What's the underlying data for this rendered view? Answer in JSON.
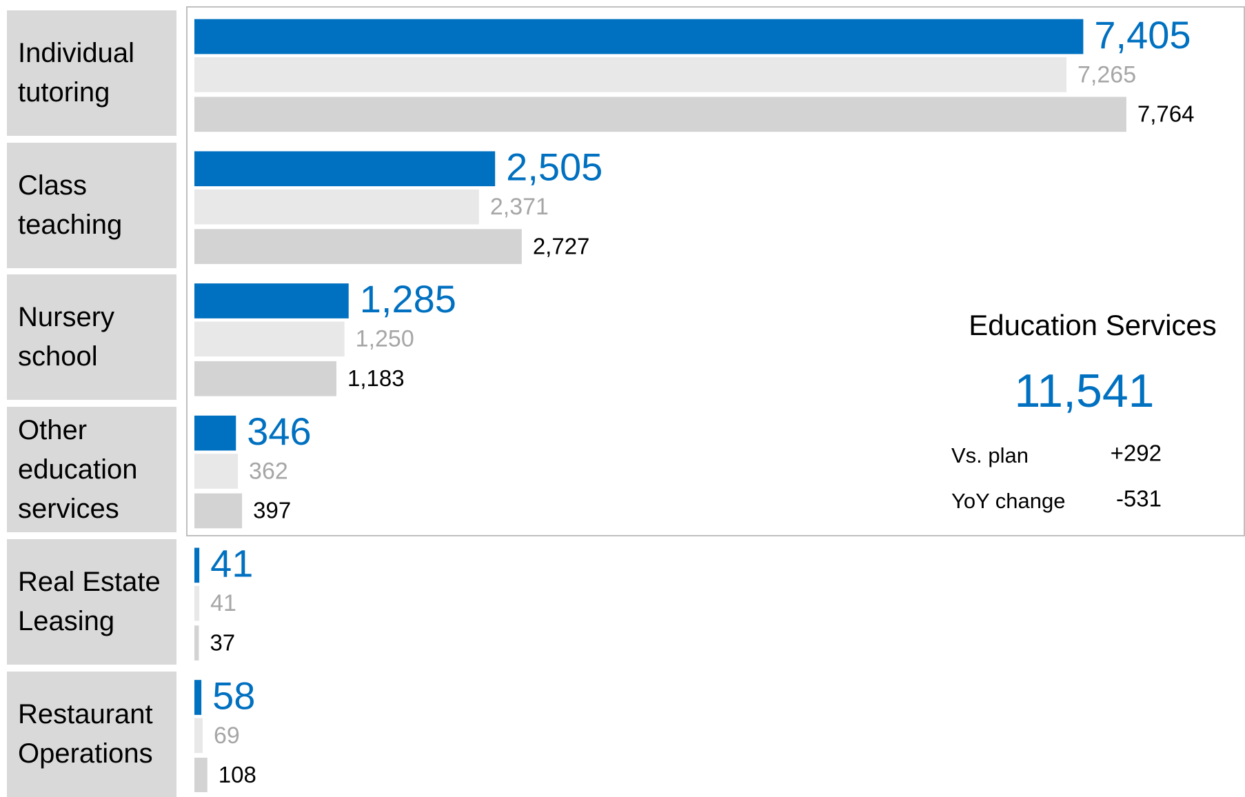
{
  "chart_data": {
    "type": "bar",
    "orientation": "horizontal",
    "categories": [
      "Individual tutoring",
      "Class teaching",
      "Nursery school",
      "Other education services",
      "Real Estate Leasing",
      "Restaurant Operations"
    ],
    "series": [
      {
        "color": "#0070c0",
        "label_color": "#0070c0",
        "values": [
          7405,
          2505,
          1285,
          346,
          41,
          58
        ],
        "value_labels": [
          "7,405",
          "2,505",
          "1,285",
          "346",
          "41",
          "58"
        ]
      },
      {
        "color": "#e8e8e8",
        "label_color": "#a6a6a6",
        "values": [
          7265,
          2371,
          1250,
          362,
          41,
          69
        ],
        "value_labels": [
          "7,265",
          "2,371",
          "1,250",
          "362",
          "41",
          "69"
        ]
      },
      {
        "color": "#d3d3d3",
        "label_color": "#000000",
        "values": [
          7764,
          2727,
          1183,
          397,
          37,
          108
        ],
        "value_labels": [
          "7,764",
          "2,727",
          "1,183",
          "397",
          "37",
          "108"
        ]
      }
    ],
    "xlim": [
      0,
      8000
    ],
    "summary": {
      "title": "Education Services",
      "total": "11,541",
      "rows": [
        {
          "label": "Vs. plan",
          "value": "+292"
        },
        {
          "label": "YoY change",
          "value": "-531"
        }
      ]
    }
  }
}
